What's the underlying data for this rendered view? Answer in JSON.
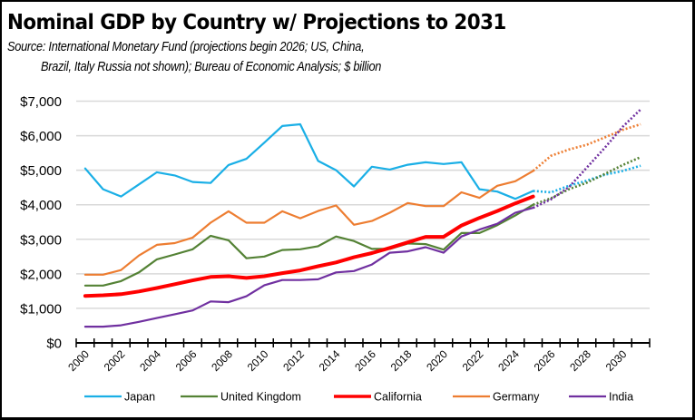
{
  "header": {
    "title": "Nominal GDP by Country w/ Projections to 2031",
    "source_line1": "Source:  International Monetary Fund (projections begin 2026; US, China,",
    "source_line2": "Brazil, Italy Russia not shown); Bureau of Economic Analysis; $ billion"
  },
  "chart_data": {
    "type": "line",
    "title": "Nominal GDP by Country w/ Projections to 2031",
    "subtitle": "Source:  International Monetary Fund (projections begin 2026; US, China, Brazil, Italy Russia not shown); Bureau of Economic Analysis; $ billion",
    "xlabel": "",
    "ylabel": "",
    "ylim": [
      0,
      7000
    ],
    "yticks": [
      0,
      1000,
      2000,
      3000,
      4000,
      5000,
      6000,
      7000
    ],
    "ytick_labels": [
      "$0",
      "$1,000",
      "$2,000",
      "$3,000",
      "$4,000",
      "$5,000",
      "$6,000",
      "$7,000"
    ],
    "x": [
      2000,
      2001,
      2002,
      2003,
      2004,
      2005,
      2006,
      2007,
      2008,
      2009,
      2010,
      2011,
      2012,
      2013,
      2014,
      2015,
      2016,
      2017,
      2018,
      2019,
      2020,
      2021,
      2022,
      2023,
      2024,
      2025,
      2026,
      2027,
      2028,
      2029,
      2030,
      2031
    ],
    "xtick_labels": [
      "2000",
      "2002",
      "2004",
      "2006",
      "2008",
      "2010",
      "2012",
      "2014",
      "2016",
      "2018",
      "2020",
      "2022",
      "2024",
      "2026",
      "2028",
      "2030"
    ],
    "projection_start_year": 2025,
    "grid": true,
    "legend_position": "bottom",
    "series": [
      {
        "name": "Japan",
        "color": "#1AAFE6",
        "values": [
          5050,
          4450,
          4240,
          4590,
          4940,
          4850,
          4660,
          4630,
          5150,
          5330,
          5800,
          6280,
          6330,
          5270,
          5000,
          4530,
          5100,
          5020,
          5160,
          5230,
          5180,
          5230,
          4450,
          4380,
          4170,
          4400,
          null,
          null,
          null,
          null,
          null,
          null
        ],
        "projection": [
          null,
          null,
          null,
          null,
          null,
          null,
          null,
          null,
          null,
          null,
          null,
          null,
          null,
          null,
          null,
          null,
          null,
          null,
          null,
          null,
          null,
          null,
          null,
          null,
          null,
          4400,
          4360,
          4550,
          4700,
          4870,
          4980,
          5130
        ]
      },
      {
        "name": "United Kingdom",
        "color": "#548235",
        "values": [
          1660,
          1660,
          1790,
          2040,
          2420,
          2560,
          2710,
          3100,
          2970,
          2450,
          2500,
          2690,
          2710,
          2800,
          3080,
          2950,
          2720,
          2720,
          2880,
          2860,
          2700,
          3180,
          3180,
          3410,
          3690,
          4000,
          null,
          null,
          null,
          null,
          null,
          null
        ],
        "projection": [
          null,
          null,
          null,
          null,
          null,
          null,
          null,
          null,
          null,
          null,
          null,
          null,
          null,
          null,
          null,
          null,
          null,
          null,
          null,
          null,
          null,
          null,
          null,
          null,
          null,
          4000,
          4190,
          4450,
          4640,
          4890,
          5150,
          5380
        ]
      },
      {
        "name": "California",
        "color": "#FF0000",
        "values": [
          1360,
          1380,
          1410,
          1490,
          1590,
          1700,
          1810,
          1910,
          1930,
          1880,
          1930,
          2020,
          2100,
          2220,
          2330,
          2480,
          2600,
          2750,
          2910,
          3070,
          3070,
          3400,
          3620,
          3820,
          4040,
          4240,
          null,
          null,
          null,
          null,
          null,
          null
        ],
        "projection": null
      },
      {
        "name": "Germany",
        "color": "#ED7D31",
        "values": [
          1975,
          1975,
          2110,
          2530,
          2840,
          2890,
          3050,
          3480,
          3810,
          3480,
          3480,
          3810,
          3610,
          3820,
          3980,
          3420,
          3530,
          3770,
          4050,
          3960,
          3960,
          4360,
          4200,
          4550,
          4680,
          4980,
          null,
          null,
          null,
          null,
          null,
          null
        ],
        "projection": [
          null,
          null,
          null,
          null,
          null,
          null,
          null,
          null,
          null,
          null,
          null,
          null,
          null,
          null,
          null,
          null,
          null,
          null,
          null,
          null,
          null,
          null,
          null,
          null,
          null,
          4980,
          5420,
          5600,
          5740,
          5950,
          6170,
          6330
        ]
      },
      {
        "name": "India",
        "color": "#7030A0",
        "values": [
          470,
          470,
          510,
          610,
          720,
          830,
          940,
          1200,
          1180,
          1350,
          1670,
          1820,
          1820,
          1840,
          2040,
          2080,
          2270,
          2610,
          2650,
          2770,
          2610,
          3080,
          3280,
          3450,
          3770,
          3910,
          null,
          null,
          null,
          null,
          null,
          null
        ],
        "projection": [
          null,
          null,
          null,
          null,
          null,
          null,
          null,
          null,
          null,
          null,
          null,
          null,
          null,
          null,
          null,
          null,
          null,
          null,
          null,
          null,
          null,
          null,
          null,
          null,
          null,
          3910,
          4160,
          4510,
          5080,
          5650,
          6260,
          6760
        ]
      }
    ]
  }
}
